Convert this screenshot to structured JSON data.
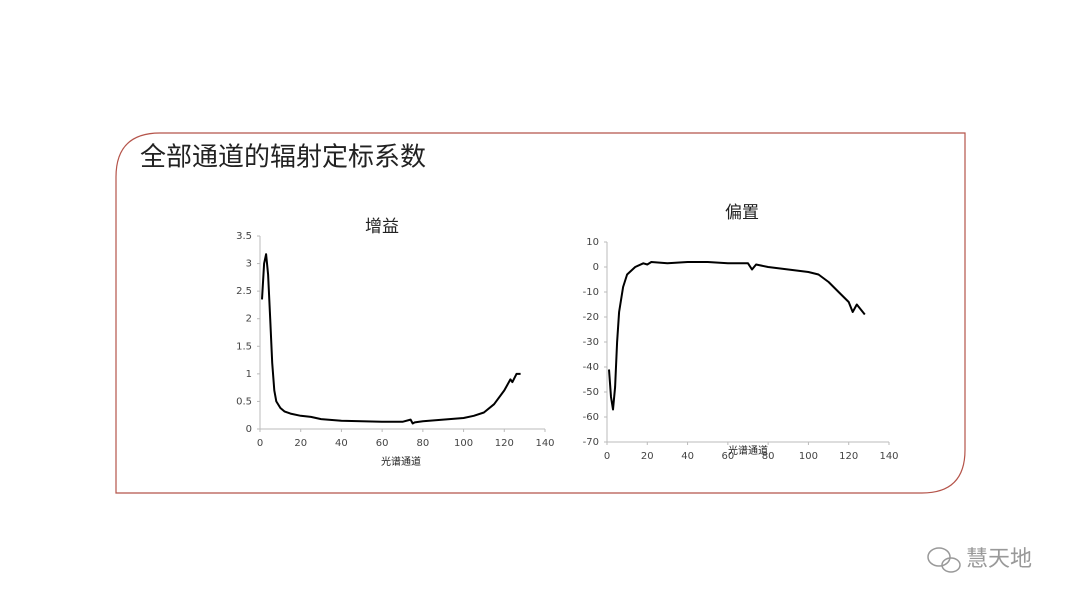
{
  "title": "全部通道的辐射定标系数",
  "watermark": "慧天地",
  "chart_data": [
    {
      "type": "line",
      "title": "增益",
      "x_label": "光谱通道",
      "color": "#000000",
      "x": [
        1,
        2,
        3,
        4,
        5,
        6,
        7,
        8,
        10,
        12,
        15,
        20,
        25,
        30,
        40,
        50,
        60,
        70,
        74,
        75,
        76,
        80,
        90,
        100,
        105,
        110,
        115,
        120,
        123,
        124,
        126,
        128
      ],
      "values": [
        2.35,
        3.0,
        3.17,
        2.8,
        2.0,
        1.2,
        0.7,
        0.5,
        0.38,
        0.32,
        0.28,
        0.24,
        0.22,
        0.18,
        0.15,
        0.14,
        0.13,
        0.13,
        0.17,
        0.1,
        0.12,
        0.14,
        0.17,
        0.2,
        0.24,
        0.3,
        0.45,
        0.7,
        0.9,
        0.85,
        1.0,
        1.0
      ],
      "xlim": [
        0,
        140
      ],
      "xticks": [
        0,
        20,
        40,
        60,
        80,
        100,
        120,
        140
      ],
      "ylim": [
        0,
        3.5
      ],
      "yticks": [
        0,
        0.5,
        1,
        1.5,
        2,
        2.5,
        3,
        3.5
      ]
    },
    {
      "type": "line",
      "title": "偏置",
      "x_label": "光谱通道",
      "color": "#000000",
      "x": [
        1,
        2,
        3,
        4,
        5,
        6,
        8,
        10,
        14,
        18,
        20,
        22,
        30,
        40,
        50,
        60,
        70,
        72,
        74,
        80,
        90,
        100,
        105,
        110,
        115,
        120,
        122,
        124,
        126,
        128
      ],
      "values": [
        -41,
        -52,
        -57,
        -48,
        -30,
        -18,
        -8,
        -3,
        0,
        1.5,
        1,
        2,
        1.5,
        2,
        2,
        1.5,
        1.5,
        -1,
        1,
        0,
        -1,
        -2,
        -3,
        -6,
        -10,
        -14,
        -18,
        -15,
        -17,
        -19
      ],
      "xlim": [
        0,
        140
      ],
      "xticks": [
        0,
        20,
        40,
        60,
        80,
        100,
        120,
        140
      ],
      "ylim": [
        -70,
        10
      ],
      "yticks": [
        -70,
        -60,
        -50,
        -40,
        -30,
        -20,
        -10,
        0,
        10
      ]
    }
  ]
}
